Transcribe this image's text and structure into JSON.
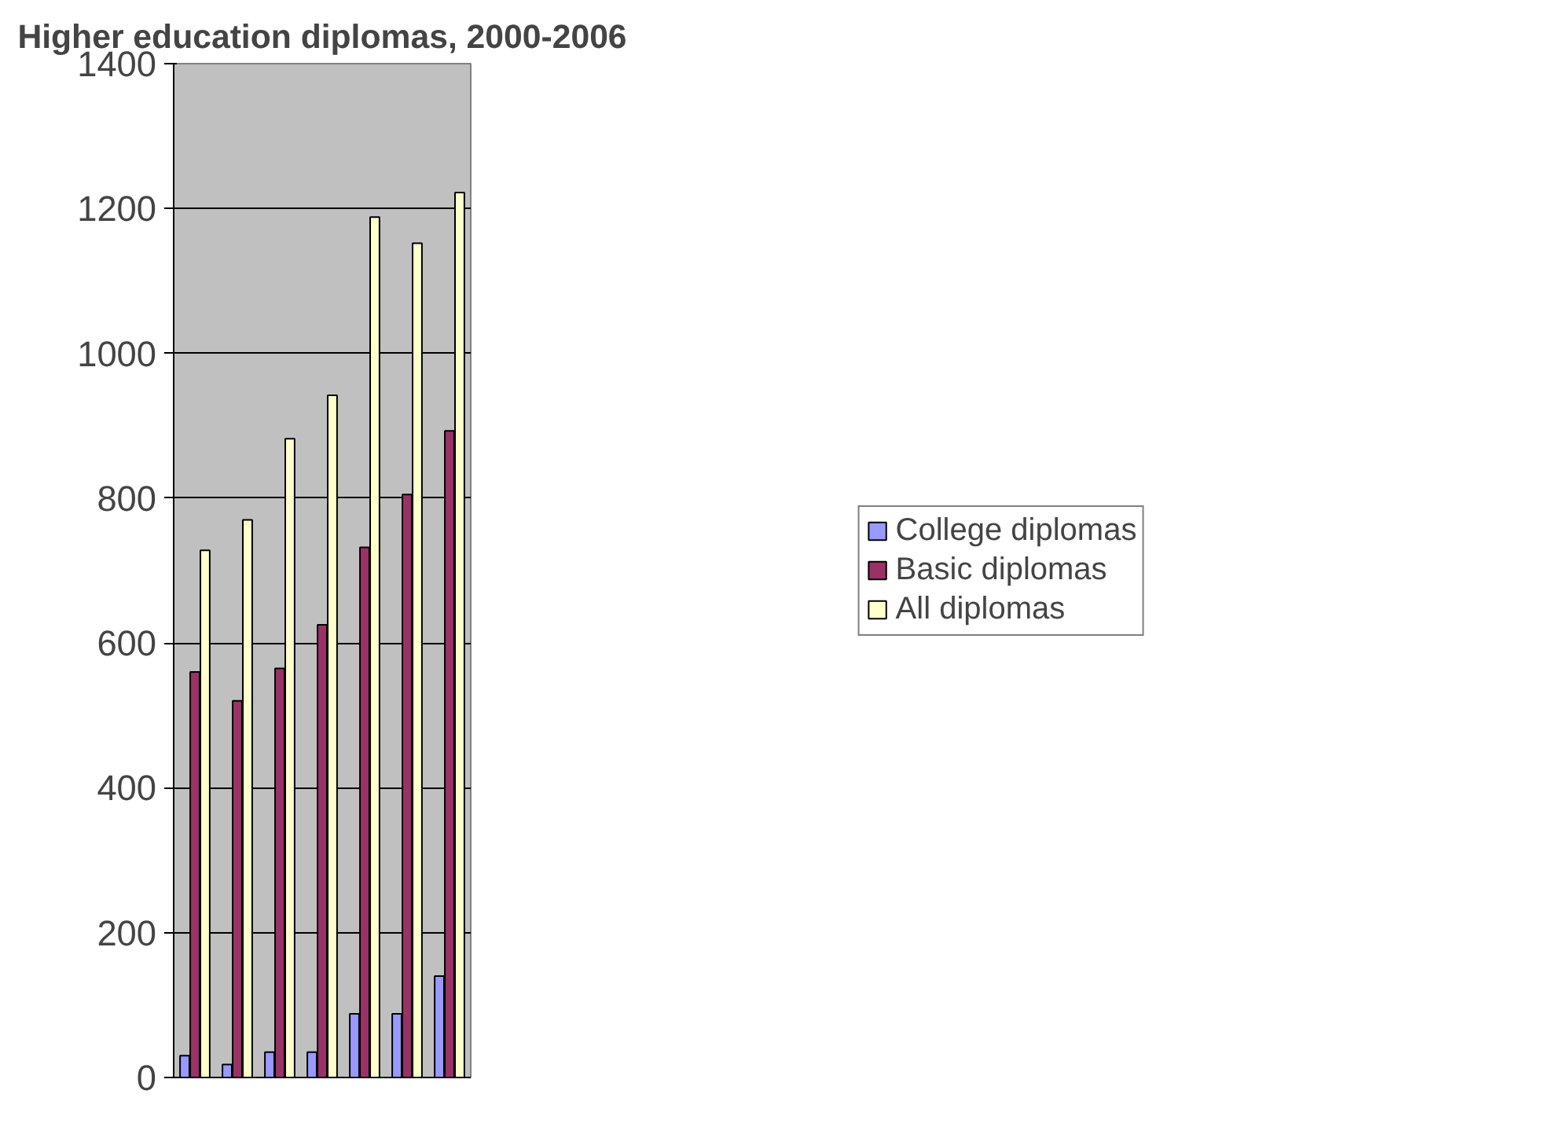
{
  "chart_data": {
    "type": "bar",
    "title": "Higher education diplomas, 2000-2006",
    "categories": [
      null,
      null,
      null,
      null,
      null,
      null,
      null
    ],
    "series": [
      {
        "name": "College diplomas",
        "color": "#9999ff",
        "values": [
          30,
          18,
          35,
          35,
          88,
          88,
          140
        ]
      },
      {
        "name": "Basic diplomas",
        "color": "#993366",
        "values": [
          560,
          520,
          565,
          625,
          732,
          805,
          893
        ]
      },
      {
        "name": "All diplomas",
        "color": "#ffffcc",
        "values": [
          728,
          770,
          882,
          942,
          1188,
          1152,
          1222
        ]
      }
    ],
    "ylim": [
      0,
      1400
    ],
    "yticks": [
      0,
      200,
      400,
      600,
      800,
      1000,
      1200,
      1400
    ],
    "grid": "y",
    "legend": "right",
    "tick_labels": "y"
  }
}
